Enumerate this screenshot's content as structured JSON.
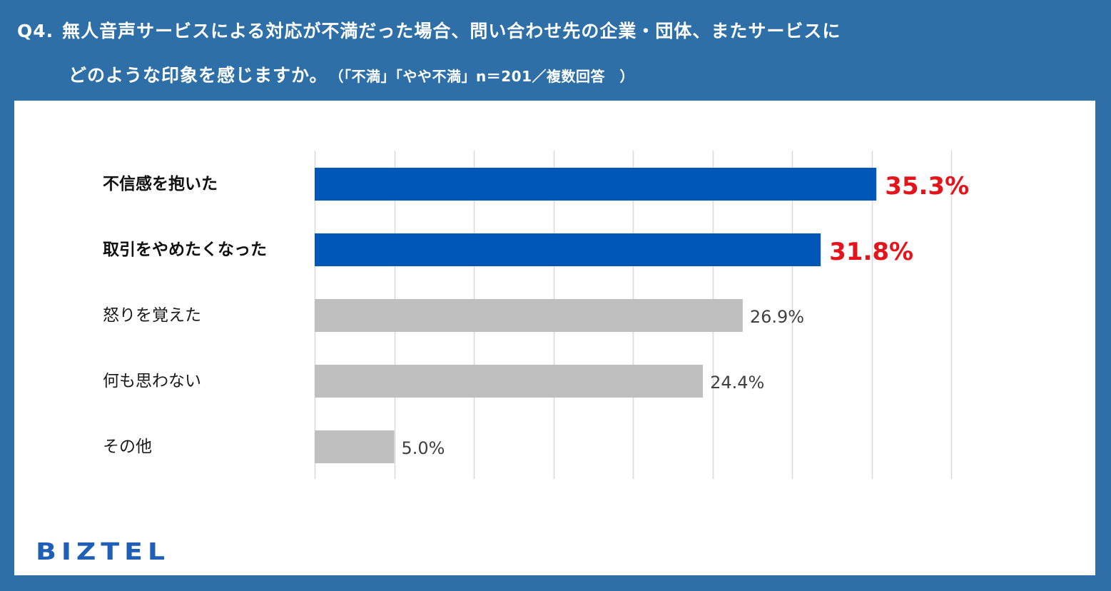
{
  "title": {
    "prefix": "Q4.",
    "line1": "無人音声サービスによる対応が不満だった場合、問い合わせ先の企業・団体、またサービスに",
    "line2": "どのような印象を感じますか。",
    "note": "（「不満」「やや不満」n＝201／複数回答　）"
  },
  "colors": {
    "background": "#2e6fa8",
    "highlight_bar": "#0057b8",
    "normal_bar": "#bfbfbf",
    "highlight_value": "#e4141b",
    "logo": "#1f5fb5"
  },
  "chart_data": {
    "type": "bar",
    "orientation": "horizontal",
    "categories": [
      "不信感を抱いた",
      "取引をやめたくなった",
      "怒りを覚えた",
      "何も思わない",
      "その他"
    ],
    "values": [
      35.3,
      31.8,
      26.9,
      24.4,
      5.0
    ],
    "value_labels": [
      "35.3%",
      "31.8%",
      "26.9%",
      "24.4%",
      "5.0%"
    ],
    "highlighted": [
      true,
      true,
      false,
      false,
      false
    ],
    "xlim": [
      0,
      40
    ],
    "gridline_step": 5,
    "grid": true,
    "unit": "%"
  },
  "logo": {
    "text": "BIZTEL"
  }
}
